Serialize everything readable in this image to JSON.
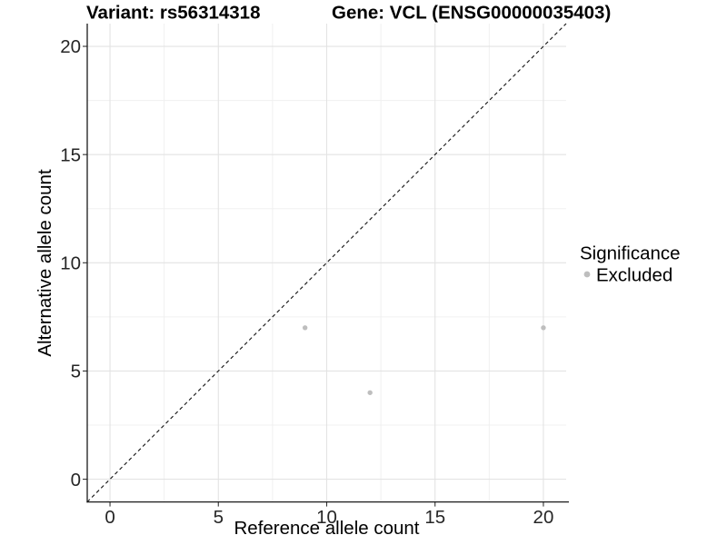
{
  "titles": {
    "left": "Variant: rs56314318",
    "right": "Gene: VCL (ENSG00000035403)"
  },
  "legend": {
    "title": "Significance",
    "items": [
      {
        "label": "Excluded",
        "color": "#bebebe"
      }
    ]
  },
  "chart_data": {
    "type": "scatter",
    "xlabel": "Reference allele count",
    "ylabel": "Alternative allele count",
    "xlim": [
      -1.05,
      21.05
    ],
    "ylim": [
      -1.05,
      21.05
    ],
    "x_ticks": [
      0,
      5,
      10,
      15,
      20
    ],
    "y_ticks": [
      0,
      5,
      10,
      15,
      20
    ],
    "minor_ticks": [
      2.5,
      7.5,
      12.5,
      17.5
    ],
    "grid": true,
    "legend_position": "right",
    "series": [
      {
        "name": "Excluded",
        "color": "#bebebe",
        "points": [
          {
            "x": 9,
            "y": 7
          },
          {
            "x": 12,
            "y": 4
          },
          {
            "x": 20,
            "y": 7
          }
        ]
      }
    ],
    "identity_line": {
      "type": "y=x",
      "style": "dashed",
      "color": "#1a1a1a",
      "from": -1.05,
      "to": 21.05
    }
  },
  "colors": {
    "background": "#ffffff",
    "major_grid": "#e3e3e3",
    "minor_grid": "#f0f0f0",
    "axis_line": "#1a1a1a",
    "tick_mark": "#333333",
    "point": "#bebebe"
  }
}
